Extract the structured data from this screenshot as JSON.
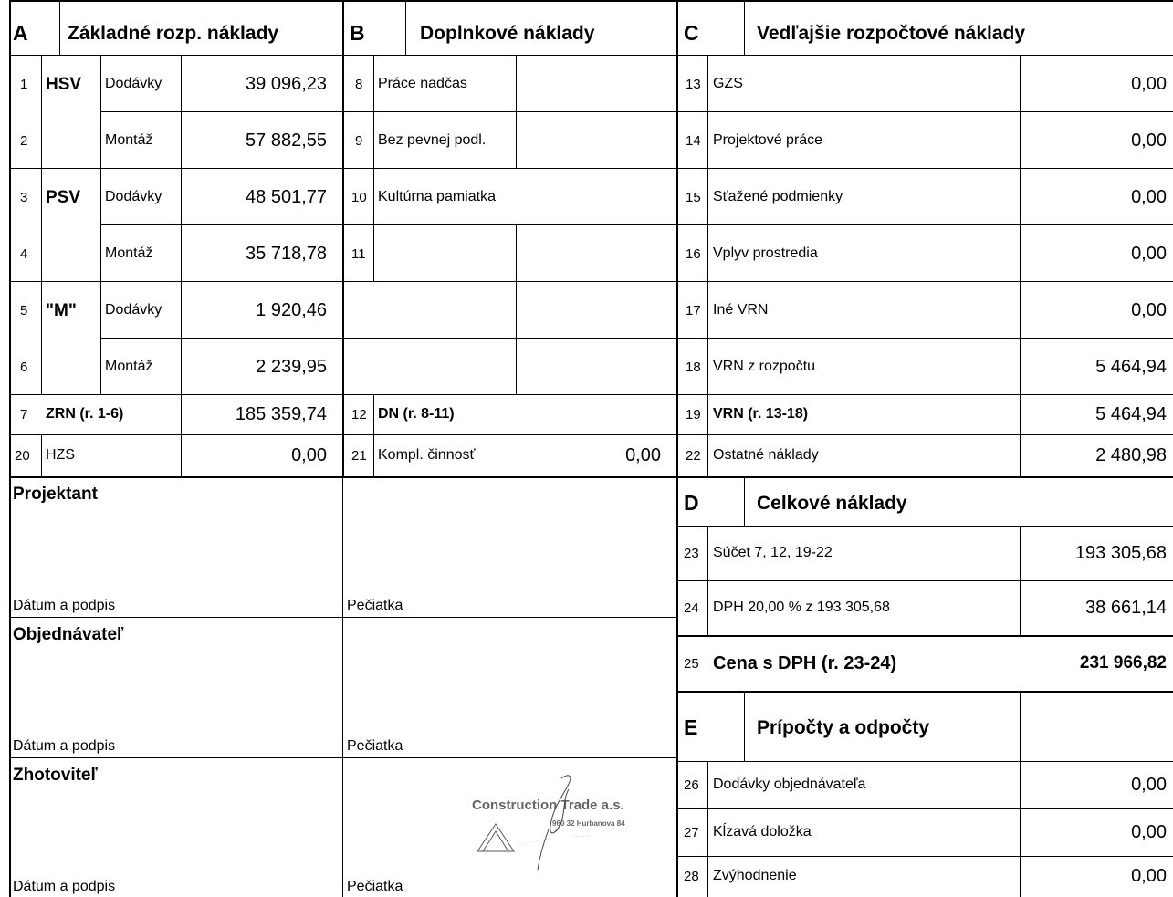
{
  "sectionA": {
    "letter": "A",
    "title": "Základné rozp. náklady",
    "rows": [
      {
        "n": "1",
        "group": "HSV",
        "label": "Dodávky",
        "value": "39 096,23"
      },
      {
        "n": "2",
        "group": "",
        "label": "Montáž",
        "value": "57 882,55"
      },
      {
        "n": "3",
        "group": "PSV",
        "label": "Dodávky",
        "value": "48 501,77"
      },
      {
        "n": "4",
        "group": "",
        "label": "Montáž",
        "value": "35 718,78"
      },
      {
        "n": "5",
        "group": "\"M\"",
        "label": "Dodávky",
        "value": "1 920,46"
      },
      {
        "n": "6",
        "group": "",
        "label": "Montáž",
        "value": "2 239,95"
      }
    ],
    "total": {
      "n": "7",
      "label": "ZRN (r. 1-6)",
      "value": "185 359,74"
    },
    "extra": {
      "n": "20",
      "label": "HZS",
      "value": "0,00"
    }
  },
  "sectionB": {
    "letter": "B",
    "title": "Doplnkové náklady",
    "rows": [
      {
        "n": "8",
        "label": "Práce nadčas"
      },
      {
        "n": "9",
        "label": "Bez pevnej podl."
      },
      {
        "n": "10",
        "label": "Kultúrna pamiatka"
      },
      {
        "n": "11",
        "label": ""
      }
    ],
    "total": {
      "n": "12",
      "label": "DN (r. 8-11)",
      "value": ""
    },
    "extra": {
      "n": "21",
      "label": "Kompl. činnosť",
      "value": "0,00"
    }
  },
  "sectionC": {
    "letter": "C",
    "title": "Vedľajšie rozpočtové náklady",
    "rows": [
      {
        "n": "13",
        "label": "GZS",
        "value": "0,00"
      },
      {
        "n": "14",
        "label": "Projektové práce",
        "value": "0,00"
      },
      {
        "n": "15",
        "label": "Sťažené podmienky",
        "value": "0,00"
      },
      {
        "n": "16",
        "label": "Vplyv prostredia",
        "value": "0,00"
      },
      {
        "n": "17",
        "label": "Iné VRN",
        "value": "0,00"
      },
      {
        "n": "18",
        "label": "VRN z rozpočtu",
        "value": "5 464,94"
      }
    ],
    "total": {
      "n": "19",
      "label": "VRN (r. 13-18)",
      "value": "5 464,94"
    },
    "extra": {
      "n": "22",
      "label": "Ostatné náklady",
      "value": "2 480,98"
    }
  },
  "sectionD": {
    "letter": "D",
    "title": "Celkové náklady",
    "rows": [
      {
        "n": "23",
        "label": "Súčet 7, 12, 19-22",
        "value": "193 305,68"
      },
      {
        "n": "24",
        "label": "DPH  20,00  % z 193 305,68",
        "value": "38 661,14"
      }
    ],
    "total": {
      "n": "25",
      "label": "Cena s DPH (r. 23-24)",
      "value": "231 966,82"
    }
  },
  "sectionE": {
    "letter": "E",
    "title": "Prípočty a odpočty",
    "rows": [
      {
        "n": "26",
        "label": "Dodávky objednávateľa",
        "value": "0,00"
      },
      {
        "n": "27",
        "label": "Kĺzavá doložka",
        "value": "0,00"
      },
      {
        "n": "28",
        "label": "Zvýhodnenie",
        "value": "0,00"
      }
    ]
  },
  "parties": [
    {
      "name": "Projektant",
      "date_label": "Dátum a podpis",
      "stamp_label": "Pečiatka"
    },
    {
      "name": "Objednávateľ",
      "date_label": "Dátum a podpis",
      "stamp_label": "Pečiatka"
    },
    {
      "name": "Zhotoviteľ",
      "date_label": "Dátum a podpis",
      "stamp_label": "Pečiatka"
    }
  ],
  "stamp": {
    "company": "Construction Trade a.s.",
    "address": "960 32 Hurbanova 84"
  }
}
